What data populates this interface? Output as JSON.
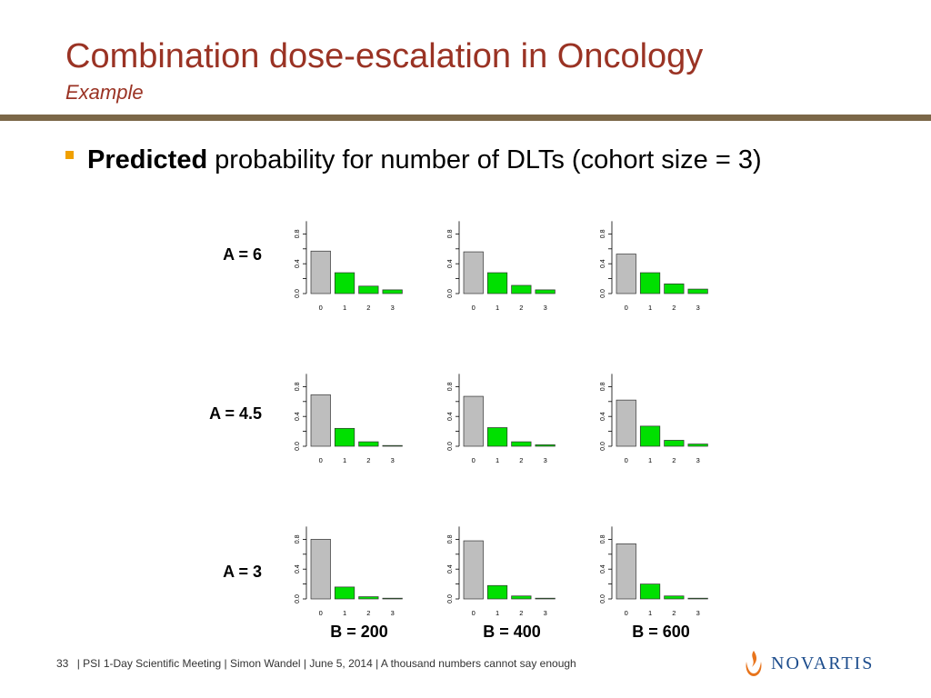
{
  "slide": {
    "title": "Combination dose-escalation in Oncology",
    "subtitle": "Example",
    "bullet": {
      "bold": "Predicted",
      "rest": "probability for number of DLTs (cohort size = 3)"
    }
  },
  "row_labels": [
    "A = 6",
    "A = 4.5",
    "A = 3"
  ],
  "col_labels": [
    "B = 200",
    "B = 400",
    "B = 600"
  ],
  "chart_data": {
    "type": "bar",
    "layout": "grid-3x3",
    "categories": [
      "0",
      "1",
      "2",
      "3"
    ],
    "ylim": [
      0,
      1
    ],
    "yticks": [
      "0.0",
      "0.4",
      "0.8"
    ],
    "xticks": [
      "0",
      "1",
      "2",
      "3"
    ],
    "bar_colors": [
      "#bebebe",
      "#00e000",
      "#00e000",
      "#00e000"
    ],
    "panels": [
      [
        {
          "values": [
            0.57,
            0.28,
            0.1,
            0.05
          ]
        },
        {
          "values": [
            0.56,
            0.28,
            0.11,
            0.05
          ]
        },
        {
          "values": [
            0.53,
            0.28,
            0.13,
            0.06
          ]
        }
      ],
      [
        {
          "values": [
            0.69,
            0.24,
            0.06,
            0.01
          ]
        },
        {
          "values": [
            0.67,
            0.25,
            0.06,
            0.02
          ]
        },
        {
          "values": [
            0.62,
            0.27,
            0.08,
            0.03
          ]
        }
      ],
      [
        {
          "values": [
            0.8,
            0.16,
            0.03,
            0.01
          ]
        },
        {
          "values": [
            0.78,
            0.18,
            0.04,
            0.01
          ]
        },
        {
          "values": [
            0.74,
            0.2,
            0.04,
            0.01
          ]
        }
      ]
    ]
  },
  "footer": {
    "page_number": "33",
    "text": "| PSI 1-Day Scientific Meeting | Simon Wandel | June 5, 2014 | A thousand numbers cannot say enough"
  },
  "logo": {
    "text": "NOVARTIS",
    "icon": "novartis-flame-icon",
    "colors": {
      "orange": "#e8741c",
      "blue": "#1c4c8c"
    }
  }
}
